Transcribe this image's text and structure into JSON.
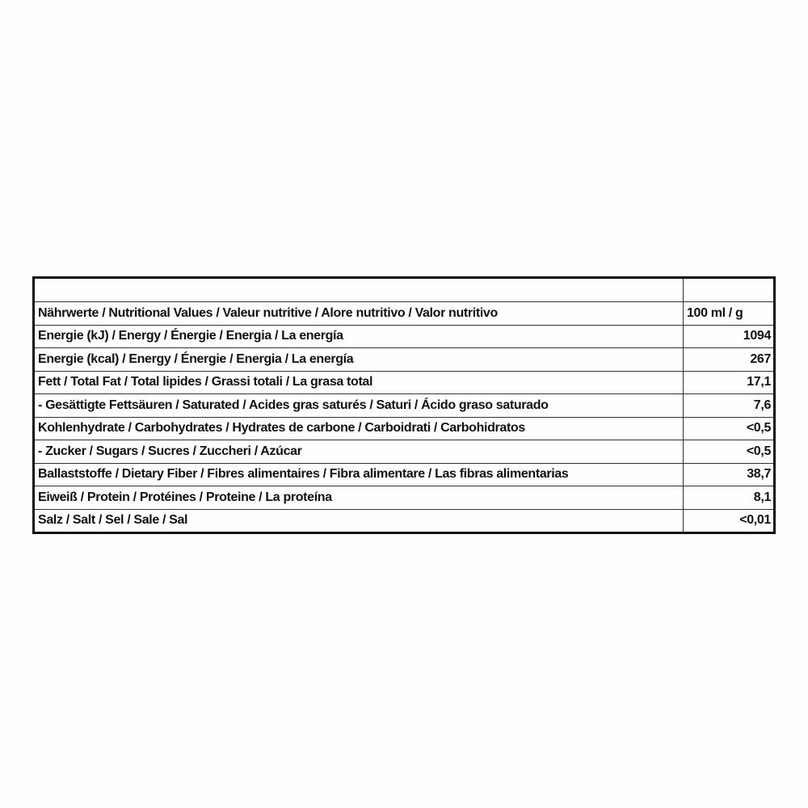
{
  "header": {
    "label": "Nährwerte / Nutritional Values / Valeur nutritive / Alore nutritivo / Valor nutritivo",
    "unit": "100 ml / g"
  },
  "rows": [
    {
      "label": "Energie (kJ) / Energy / Énergie / Energia / La energía",
      "value": "1094"
    },
    {
      "label": "Energie (kcal) / Energy / Énergie / Energia / La energía",
      "value": "267"
    },
    {
      "label": "Fett / Total Fat / Total lipides / Grassi totali / La grasa total",
      "value": "17,1"
    },
    {
      "label": "- Gesättigte Fettsäuren / Saturated / Acides gras saturés / Saturi / Ácido graso saturado",
      "value": "7,6"
    },
    {
      "label": "Kohlenhydrate / Carbohydrates / Hydrates de carbone / Carboidrati / Carbohidratos",
      "value": "<0,5"
    },
    {
      "label": "- Zucker / Sugars / Sucres / Zuccheri / Azúcar",
      "value": "<0,5"
    },
    {
      "label": "Ballaststoffe / Dietary Fiber / Fibres alimentaires / Fibra alimentare / Las fibras alimentarias",
      "value": "38,7"
    },
    {
      "label": "Eiweiß / Protein / Protéines / Proteine / La proteína",
      "value": "8,1"
    },
    {
      "label": "Salz / Salt / Sel / Sale / Sal",
      "value": "<0,01"
    }
  ]
}
